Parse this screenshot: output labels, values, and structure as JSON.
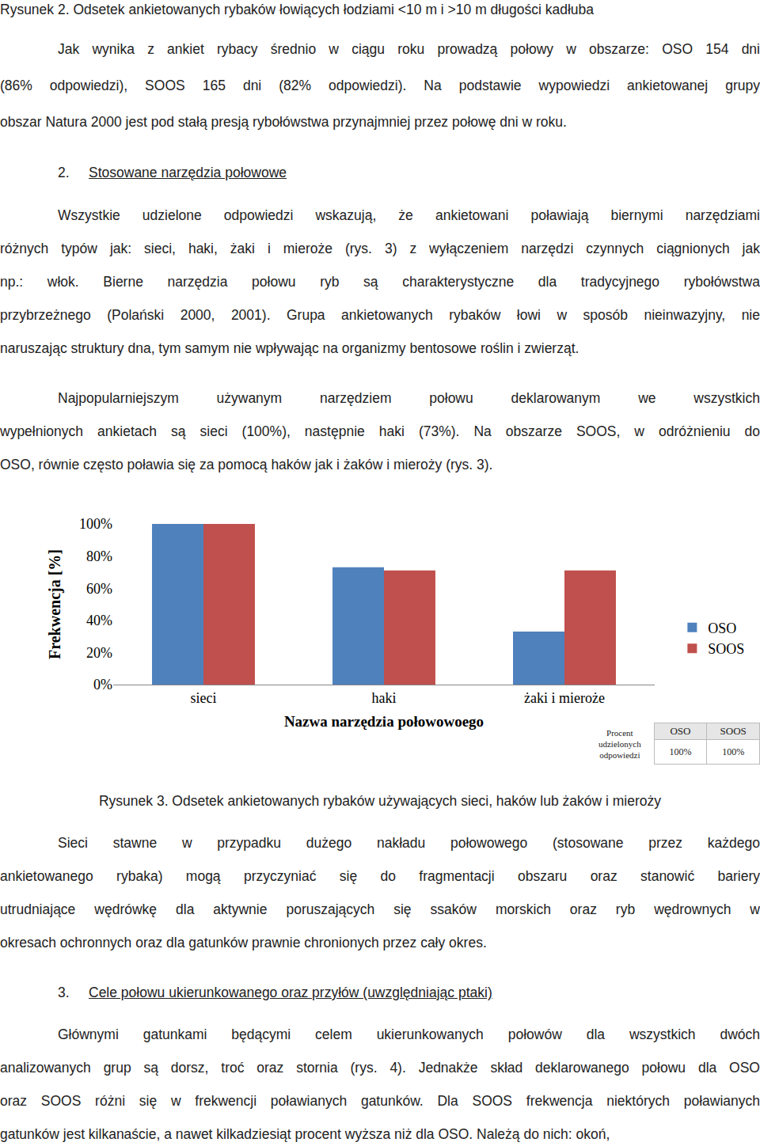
{
  "page": {
    "blocks": [
      {
        "kind": "caption",
        "text": "Rysunek 2. Odsetek ankietowanych rybaków łowiących łodziami <10 m i >10 m długości kadłuba"
      },
      {
        "kind": "paragraph",
        "lines": [
          "Jak wynika z ankiet rybacy średnio w ciągu roku prowadzą połowy w obszarze: OSO 154 dni",
          "(86% odpowiedzi), SOOS 165 dni (82% odpowiedzi). Na podstawie wypowiedzi ankietowanej grupy",
          "obszar Natura 2000 jest pod stałą presją rybołówstwa przynajmniej przez połowę dni w roku."
        ]
      },
      {
        "kind": "heading",
        "number": "2.",
        "text": "Stosowane narzędzia połowowe"
      },
      {
        "kind": "paragraph",
        "lines": [
          "Wszystkie udzielone odpowiedzi wskazują, że ankietowani poławiają biernymi narzędziami",
          "różnych typów jak: sieci, haki, żaki i mieroże (rys. 3) z wyłączeniem narzędzi czynnych ciągnionych jak",
          "np.: włok. Bierne narzędzia połowu ryb są charakterystyczne dla tradycyjnego rybołówstwa",
          "przybrzeżnego (Polański 2000, 2001). Grupa ankietowanych rybaków łowi w sposób nieinwazyjny, nie",
          "naruszając struktury dna, tym samym nie wpływając na organizmy bentosowe roślin i zwierząt."
        ]
      },
      {
        "kind": "paragraph",
        "lines": [
          "Najpopularniejszym używanym narzędziem połowu deklarowanym we wszystkich",
          "wypełnionych ankietach są sieci (100%), następnie haki (73%). Na obszarze SOOS, w odróżnieniu do",
          "OSO, równie często poławia się za pomocą haków jak i żaków i mieroży (rys. 3)."
        ]
      },
      {
        "kind": "chart",
        "table": {
          "label": "Procent udzielonych odpowiedzi",
          "columns": [
            "OSO",
            "SOOS"
          ],
          "values": [
            "100%",
            "100%"
          ]
        }
      },
      {
        "kind": "caption",
        "text": "Rysunek 3. Odsetek ankietowanych rybaków używających sieci, haków lub żaków i mieroży"
      },
      {
        "kind": "paragraph",
        "lines": [
          "Sieci stawne w przypadku dużego nakładu połowowego (stosowane przez każdego",
          "ankietowanego rybaka) mogą przyczyniać się do fragmentacji obszaru oraz stanowić bariery",
          "utrudniające wędrówkę dla aktywnie poruszających się ssaków morskich oraz ryb wędrownych w",
          "okresach ochronnych oraz dla gatunków prawnie chronionych przez cały okres."
        ]
      },
      {
        "kind": "heading",
        "number": "3.",
        "text": "Cele połowu ukierunkowanego oraz przyłów (uwzględniając ptaki)"
      },
      {
        "kind": "paragraph",
        "lines": [
          "Głównymi gatunkami będącymi celem ukierunkowanych połowów dla wszystkich dwóch",
          "analizowanych grup są dorsz, troć oraz stornia (rys. 4). Jednakże skład deklarowanego połowu dla OSO",
          "oraz SOOS różni się w frekwencji poławianych gatunków. Dla SOOS frekwencja niektórych poławianych",
          "gatunków jest kilkanaście, a nawet kilkadziesiąt procent wyższa niż dla OSO. Należą do nich: okoń,"
        ]
      }
    ]
  },
  "chart_data": {
    "type": "bar",
    "x_label": "Nazwa narzędzia połowowoego",
    "y_label": "Frekwencja [%]",
    "categories": [
      "sieci",
      "haki",
      "żaki i mieroże"
    ],
    "series": [
      {
        "name": "OSO",
        "color": "#4f81bd",
        "values": [
          100,
          73,
          33
        ]
      },
      {
        "name": "SOOS",
        "color": "#c0504d",
        "values": [
          100,
          71,
          71
        ]
      }
    ],
    "ylim": [
      0,
      100
    ],
    "yticks": [
      {
        "value": 0,
        "label": "0%"
      },
      {
        "value": 20,
        "label": "20%"
      },
      {
        "value": 40,
        "label": "40%"
      },
      {
        "value": 60,
        "label": "60%"
      },
      {
        "value": 80,
        "label": "80%"
      },
      {
        "value": 100,
        "label": "100%"
      }
    ],
    "grid": false,
    "legend": "right"
  }
}
